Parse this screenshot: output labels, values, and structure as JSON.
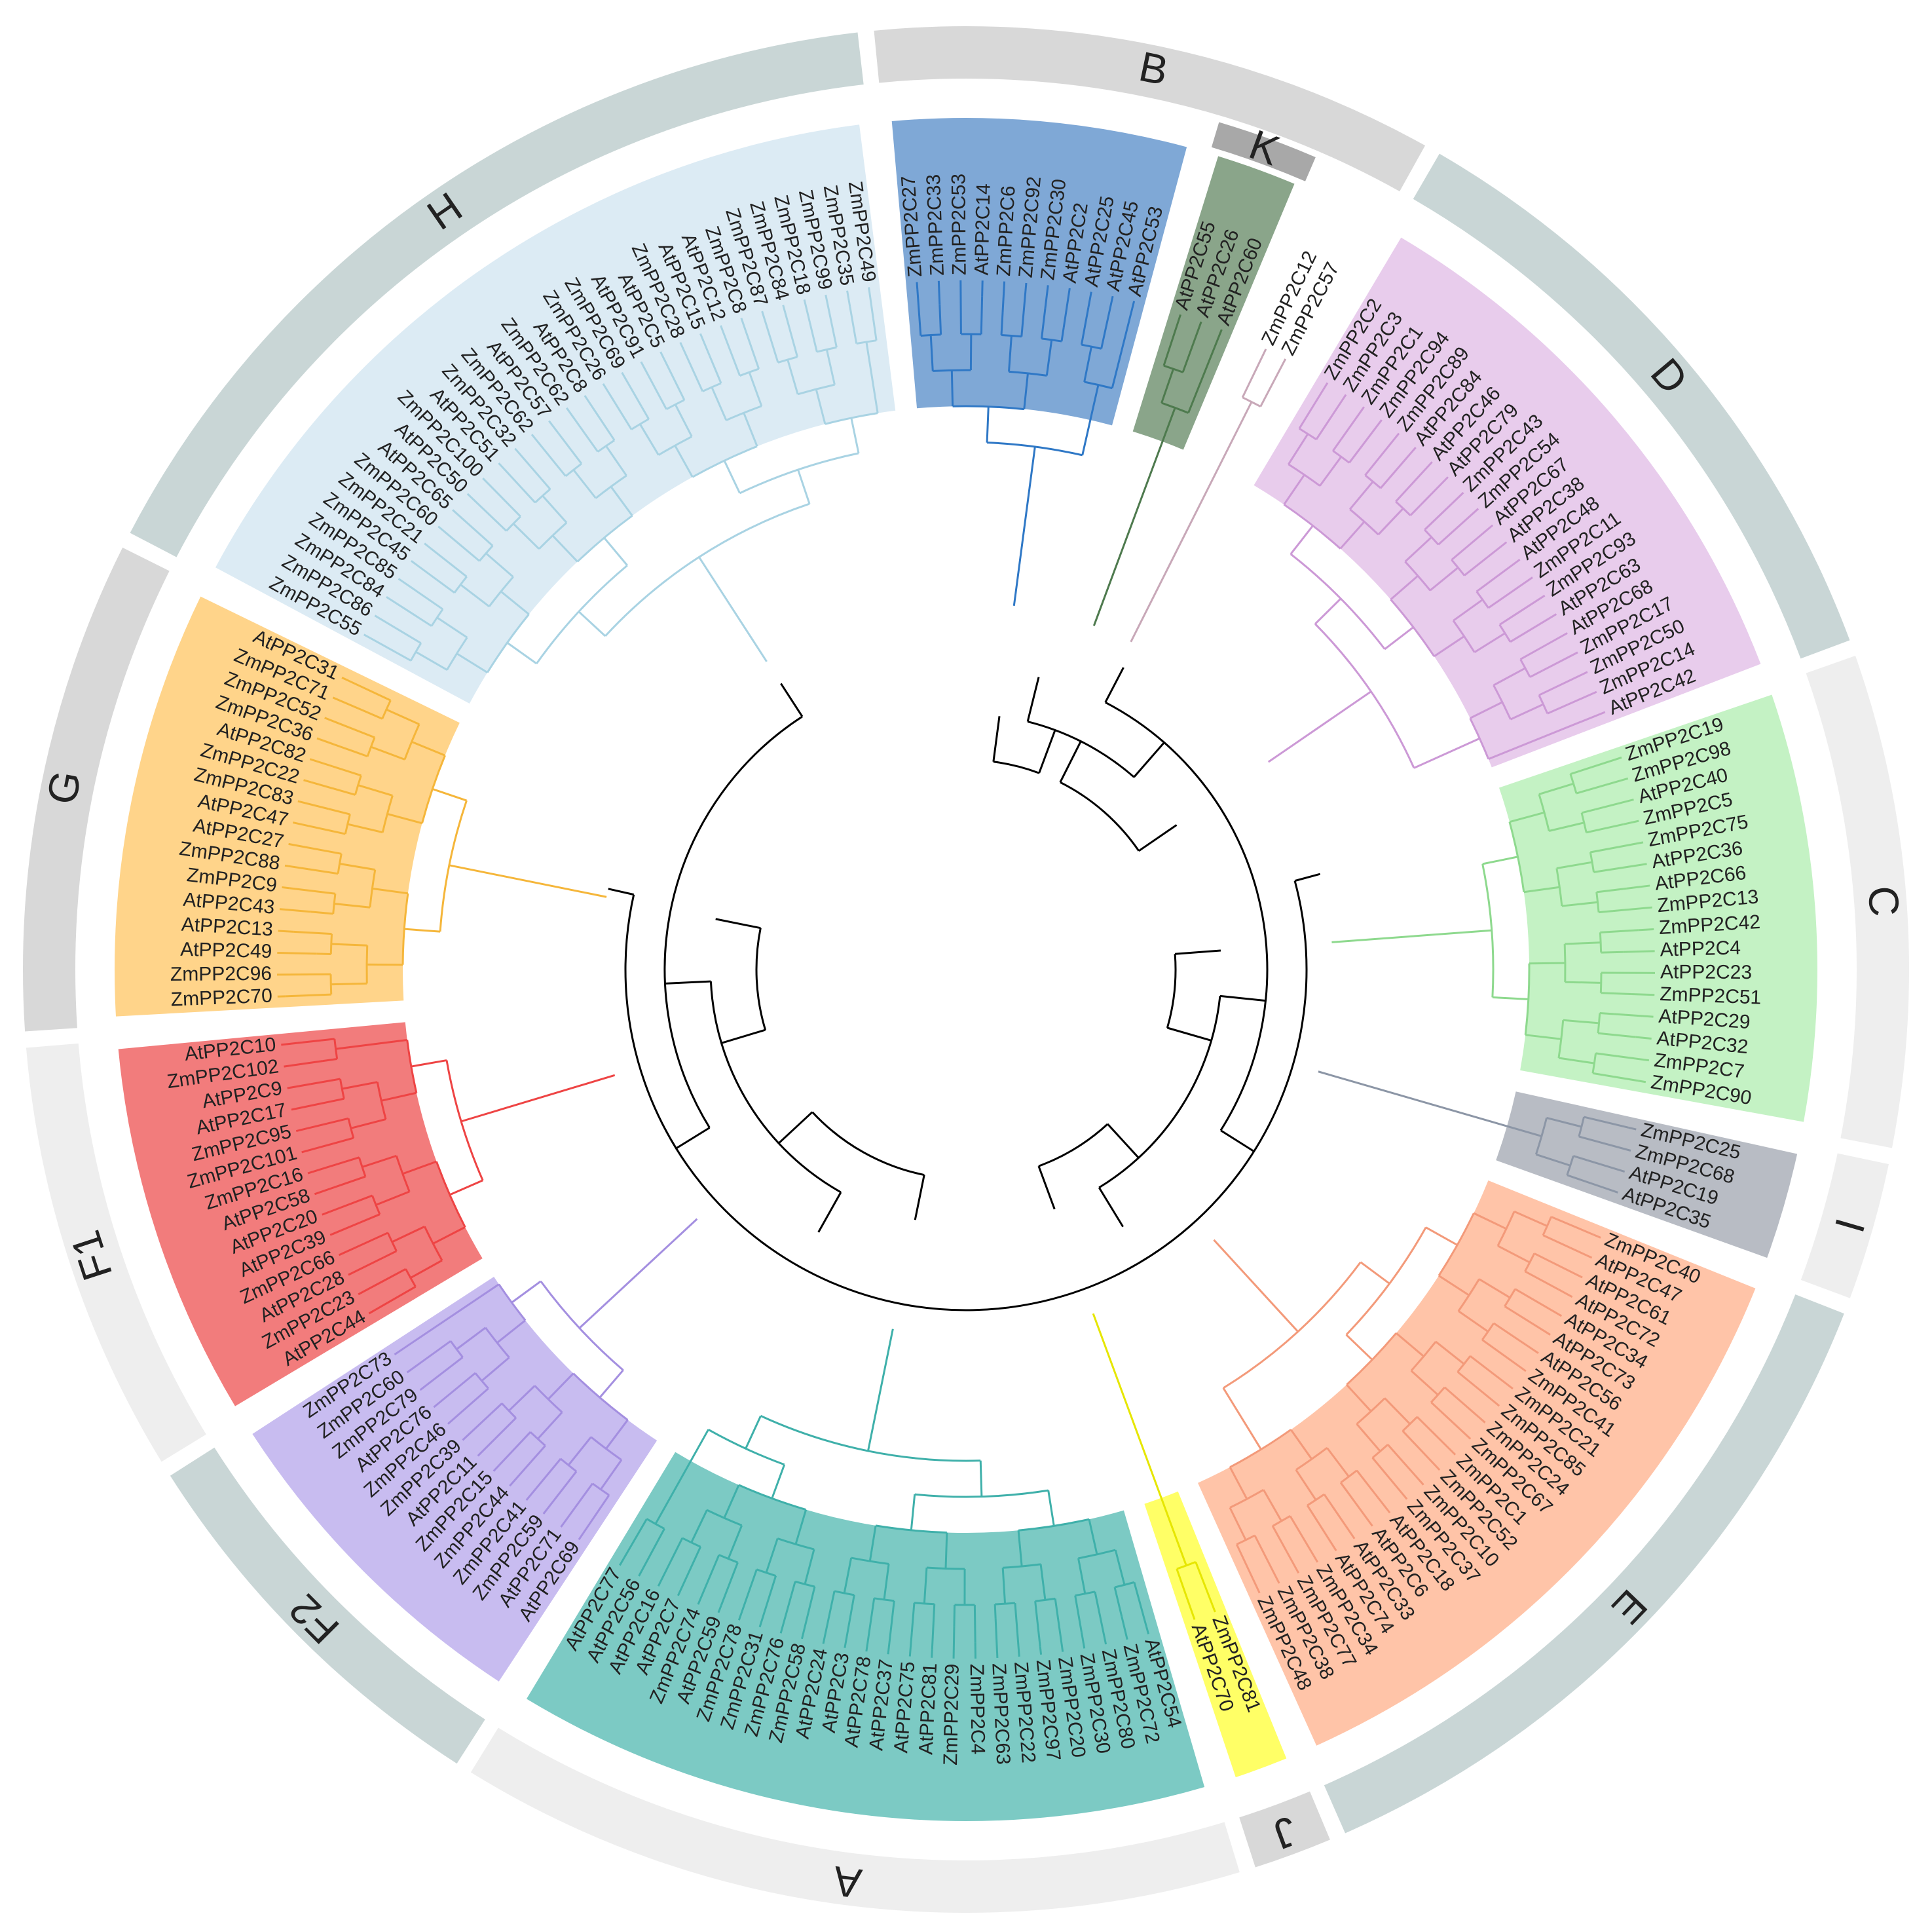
{
  "colors": {
    "backbone": "#000000",
    "ring_a": "#c9d6d6",
    "ring_b": "#d8d8d8",
    "ring_c": "#eeeeee"
  },
  "clades": [
    {
      "id": "B",
      "label": "B",
      "fill": "#7fa8d6",
      "line": "#2f78c6",
      "leaves": [
        "ZmPP2C27",
        "ZmPP2C33",
        "ZmPP2C53",
        "AtPP2C14",
        "ZmPP2C6",
        "ZmPP2C92",
        "ZmPP2C30",
        "AtPP2C2",
        "AtPP2C25",
        "AtPP2C45",
        "AtPP2C53"
      ]
    },
    {
      "id": "K",
      "label": "K",
      "fill": "#8aa58a",
      "line": "#4e7a4e",
      "leaves": [
        "AtPP2C55",
        "AtPP2C26",
        "AtPP2C60"
      ]
    },
    {
      "id": "L",
      "label": "",
      "fill": "#ffffff",
      "line": "#c8a8b8",
      "leaves": [
        "ZmPP2C12",
        "ZmPP2C57"
      ]
    },
    {
      "id": "D",
      "label": "D",
      "fill": "#e8ccec",
      "line": "#cc99d6",
      "leaves": [
        "ZmPP2C2",
        "ZmPP2C3",
        "ZmPP2C1",
        "ZmPP2C94",
        "ZmPP2C89",
        "AtPP2C84",
        "AtPP2C46",
        "AtPP2C79",
        "ZmPP2C43",
        "ZmPP2C54",
        "AtPP2C67",
        "AtPP2C38",
        "AtPP2C48",
        "ZmPP2C11",
        "ZmPP2C93",
        "AtPP2C63",
        "AtPP2C68",
        "ZmPP2C17",
        "ZmPP2C50",
        "ZmPP2C14",
        "AtPP2C42"
      ]
    },
    {
      "id": "C",
      "label": "C",
      "fill": "#c4f2c4",
      "line": "#8ed98e",
      "leaves": [
        "ZmPP2C19",
        "ZmPP2C98",
        "AtPP2C40",
        "ZmPP2C5",
        "ZmPP2C75",
        "AtPP2C36",
        "AtPP2C66",
        "ZmPP2C13",
        "ZmPP2C42",
        "AtPP2C4",
        "AtPP2C23",
        "ZmPP2C51",
        "AtPP2C29",
        "AtPP2C32",
        "ZmPP2C7",
        "ZmPP2C90"
      ]
    },
    {
      "id": "I",
      "label": "I",
      "fill": "#b8bcc4",
      "line": "#8c96a6",
      "leaves": [
        "ZmPP2C25",
        "ZmPP2C68",
        "AtPP2C19",
        "AtPP2C35"
      ]
    },
    {
      "id": "E",
      "label": "E",
      "fill": "#ffc4a8",
      "line": "#f39a7a",
      "leaves": [
        "ZmPP2C40",
        "AtPP2C47",
        "AtPP2C61",
        "AtPP2C72",
        "AtPP2C34",
        "AtPP2C73",
        "AtPP2C56",
        "ZmPP2C41",
        "ZmPP2C21",
        "ZmPP2C85",
        "ZmPP2C24",
        "ZmPP2C67",
        "ZmPP2C1",
        "ZmPP2C52",
        "ZmPP2C10",
        "ZmPP2C37",
        "AtPP2C18",
        "AtPP2C6",
        "AtPP2C33",
        "AtPP2C74",
        "ZmPP2C34",
        "ZmPP2C77",
        "ZmPP2C38",
        "ZmPP2C48"
      ]
    },
    {
      "id": "J",
      "label": "J",
      "fill": "#ffff66",
      "line": "#e6e600",
      "leaves": [
        "ZmPP2C81",
        "AtPP2C70"
      ]
    },
    {
      "id": "A",
      "label": "A",
      "fill": "#7ccac4",
      "line": "#3fb0aa",
      "leaves": [
        "AtPP2C54",
        "ZmPP2C72",
        "ZmPP2C80",
        "ZmPP2C30",
        "ZmPP2C20",
        "ZmPP2C97",
        "ZmPP2C22",
        "ZmPP2C63",
        "ZmPP2C4",
        "ZmPP2C29",
        "AtPP2C81",
        "AtPP2C75",
        "AtPP2C37",
        "AtPP2C78",
        "AtPP2C3",
        "AtPP2C24",
        "ZmPP2C58",
        "ZmPP2C76",
        "ZmPP2C31",
        "ZmPP2C78",
        "AtPP2C59",
        "ZmPP2C74",
        "AtPP2C7",
        "AtPP2C16",
        "AtPP2C56",
        "AtPP2C77"
      ]
    },
    {
      "id": "F2",
      "label": "F2",
      "fill": "#c8bcf0",
      "line": "#a48fe0",
      "leaves": [
        "AtPP2C69",
        "AtPP2C71",
        "ZmPP2C59",
        "ZmPP2C41",
        "ZmPP2C44",
        "ZmPP2C15",
        "AtPP2C11",
        "ZmPP2C39",
        "ZmPP2C46",
        "AtPP2C76",
        "ZmPP2C79",
        "ZmPP2C60",
        "ZmPP2C73"
      ]
    },
    {
      "id": "F1",
      "label": "F1",
      "fill": "#f27c7c",
      "line": "#ee4444",
      "leaves": [
        "AtPP2C44",
        "ZmPP2C23",
        "AtPP2C28",
        "ZmPP2C66",
        "AtPP2C39",
        "AtPP2C20",
        "AtPP2C58",
        "ZmPP2C16",
        "ZmPP2C101",
        "ZmPP2C95",
        "AtPP2C17",
        "AtPP2C9",
        "ZmPP2C102",
        "AtPP2C10"
      ]
    },
    {
      "id": "G",
      "label": "G",
      "fill": "#ffd48a",
      "line": "#f5b63a",
      "leaves": [
        "ZmPP2C70",
        "ZmPP2C96",
        "AtPP2C49",
        "AtPP2C13",
        "AtPP2C43",
        "ZmPP2C9",
        "ZmPP2C88",
        "AtPP2C27",
        "AtPP2C47",
        "ZmPP2C83",
        "ZmPP2C22",
        "AtPP2C82",
        "ZmPP2C36",
        "ZmPP2C52",
        "ZmPP2C71",
        "AtPP2C31"
      ]
    },
    {
      "id": "H",
      "label": "H",
      "fill": "#dcebf4",
      "line": "#a9d3e3",
      "leaves": [
        "ZmPP2C55",
        "ZmPP2C86",
        "ZmPP2C84",
        "ZmPP2C85",
        "ZmPP2C45",
        "ZmPP2C21",
        "ZmPP2C60",
        "AtPP2C65",
        "AtPP2C50",
        "ZmPP2C100",
        "AtPP2C51",
        "ZmPP2C32",
        "ZmPP2C62",
        "AtPP2C57",
        "ZmPP2C62",
        "AtPP2C8",
        "ZmPP2C26",
        "ZmPP2C69",
        "AtPP2C91",
        "AtPP2C5",
        "ZmPP2C28",
        "AtPP2C15",
        "AtPP2C12",
        "ZmPP2C8",
        "ZmPP2C87",
        "ZmPP2C84",
        "ZmPP2C18",
        "ZmPP2C99",
        "ZmPP2C35",
        "ZmPP2C49"
      ]
    }
  ],
  "ring_groups": [
    {
      "label": "H",
      "clades": [
        "H"
      ],
      "band": "ring_a"
    },
    {
      "label": "B",
      "clades": [
        "B",
        "K",
        "L"
      ],
      "band": "ring_b"
    },
    {
      "label": "K",
      "clades": [
        "K"
      ],
      "band": "inner"
    },
    {
      "label": "D",
      "clades": [
        "D"
      ],
      "band": "ring_a"
    },
    {
      "label": "C",
      "clades": [
        "C"
      ],
      "band": "ring_c"
    },
    {
      "label": "I",
      "clades": [
        "I"
      ],
      "band": "ring_c"
    },
    {
      "label": "E",
      "clades": [
        "E"
      ],
      "band": "ring_a"
    },
    {
      "label": "J",
      "clades": [
        "J"
      ],
      "band": "ring_b"
    },
    {
      "label": "A",
      "clades": [
        "A"
      ],
      "band": "ring_c"
    },
    {
      "label": "F2",
      "clades": [
        "F2"
      ],
      "band": "ring_a"
    },
    {
      "label": "F1",
      "clades": [
        "F1"
      ],
      "band": "ring_c"
    },
    {
      "label": "G",
      "clades": [
        "G"
      ],
      "band": "ring_b"
    }
  ]
}
